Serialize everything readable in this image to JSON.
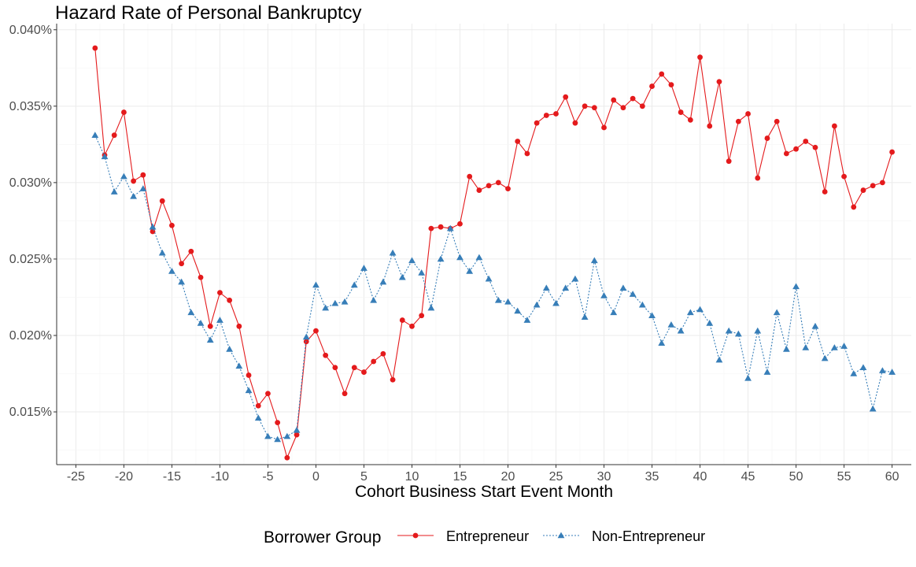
{
  "chart_data": {
    "type": "line",
    "title": "Hazard Rate of Personal Bankruptcy",
    "xlabel": "Cohort Business Start Event Month",
    "ylabel": "",
    "xlim": [
      -27,
      62
    ],
    "ylim": [
      0.01155,
      0.0404
    ],
    "x_ticks": [
      -25,
      -20,
      -15,
      -10,
      -5,
      0,
      5,
      10,
      15,
      20,
      25,
      30,
      35,
      40,
      45,
      50,
      55,
      60
    ],
    "x_tick_labels": [
      "-25",
      "-20",
      "-15",
      "-10",
      "-5",
      "0",
      "5",
      "10",
      "15",
      "20",
      "25",
      "30",
      "35",
      "40",
      "45",
      "50",
      "55",
      "60"
    ],
    "y_ticks": [
      0.015,
      0.02,
      0.025,
      0.03,
      0.035,
      0.04
    ],
    "y_tick_labels": [
      "0.015%",
      "0.020%",
      "0.025%",
      "0.030%",
      "0.035%",
      "0.040%"
    ],
    "grid": true,
    "legend": {
      "title": "Borrower Group",
      "placement": "bottom"
    },
    "series": [
      {
        "name": "Entrepreneur",
        "color": "#e41a1c",
        "line_style": "solid",
        "marker": "circle",
        "x": [
          -23,
          -22,
          -21,
          -20,
          -19,
          -18,
          -17,
          -16,
          -15,
          -14,
          -13,
          -12,
          -11,
          -10,
          -9,
          -8,
          -7,
          -6,
          -5,
          -4,
          -3,
          -2,
          -1,
          0,
          1,
          2,
          3,
          4,
          5,
          6,
          7,
          8,
          9,
          10,
          11,
          12,
          13,
          14,
          15,
          16,
          17,
          18,
          19,
          20,
          21,
          22,
          23,
          24,
          25,
          26,
          27,
          28,
          29,
          30,
          31,
          32,
          33,
          34,
          35,
          36,
          37,
          38,
          39,
          40,
          41,
          42,
          43,
          44,
          45,
          46,
          47,
          48,
          49,
          50,
          51,
          52,
          53,
          54,
          55,
          56,
          57,
          58,
          59,
          60
        ],
        "values": [
          0.0388,
          0.0318,
          0.0331,
          0.0346,
          0.0301,
          0.0305,
          0.0268,
          0.0288,
          0.0272,
          0.0247,
          0.0255,
          0.0238,
          0.0206,
          0.0228,
          0.0223,
          0.0206,
          0.0174,
          0.0154,
          0.0162,
          0.0143,
          0.012,
          0.0135,
          0.0196,
          0.0203,
          0.0187,
          0.0179,
          0.0162,
          0.0179,
          0.0176,
          0.0183,
          0.0188,
          0.0171,
          0.021,
          0.0206,
          0.0213,
          0.027,
          0.0271,
          0.027,
          0.0273,
          0.0304,
          0.0295,
          0.0298,
          0.03,
          0.0296,
          0.0327,
          0.0319,
          0.0339,
          0.0344,
          0.0345,
          0.0356,
          0.0339,
          0.035,
          0.0349,
          0.0336,
          0.0354,
          0.0349,
          0.0355,
          0.035,
          0.0363,
          0.0371,
          0.0364,
          0.0346,
          0.0341,
          0.0382,
          0.0337,
          0.0366,
          0.0314,
          0.034,
          0.0345,
          0.0303,
          0.0329,
          0.034,
          0.0319,
          0.0322,
          0.0327,
          0.0323,
          0.0294,
          0.0337,
          0.0304,
          0.0284,
          0.0295,
          0.0298,
          0.03,
          0.032
        ]
      },
      {
        "name": "Non-Entrepreneur",
        "color": "#377eb8",
        "line_style": "dotted",
        "marker": "triangle",
        "x": [
          -23,
          -22,
          -21,
          -20,
          -19,
          -18,
          -17,
          -16,
          -15,
          -14,
          -13,
          -12,
          -11,
          -10,
          -9,
          -8,
          -7,
          -6,
          -5,
          -4,
          -3,
          -2,
          -1,
          0,
          1,
          2,
          3,
          4,
          5,
          6,
          7,
          8,
          9,
          10,
          11,
          12,
          13,
          14,
          15,
          16,
          17,
          18,
          19,
          20,
          21,
          22,
          23,
          24,
          25,
          26,
          27,
          28,
          29,
          30,
          31,
          32,
          33,
          34,
          35,
          36,
          37,
          38,
          39,
          40,
          41,
          42,
          43,
          44,
          45,
          46,
          47,
          48,
          49,
          50,
          51,
          52,
          53,
          54,
          55,
          56,
          57,
          58,
          59,
          60
        ],
        "values": [
          0.0331,
          0.0317,
          0.0294,
          0.0304,
          0.0291,
          0.0296,
          0.0271,
          0.0254,
          0.0242,
          0.0235,
          0.0215,
          0.0208,
          0.0197,
          0.021,
          0.0191,
          0.018,
          0.0164,
          0.0146,
          0.0134,
          0.0132,
          0.0134,
          0.0138,
          0.0199,
          0.0233,
          0.0218,
          0.0221,
          0.0222,
          0.0233,
          0.0244,
          0.0223,
          0.0235,
          0.0254,
          0.0238,
          0.0249,
          0.0241,
          0.0218,
          0.025,
          0.027,
          0.0251,
          0.0242,
          0.0251,
          0.0237,
          0.0223,
          0.0222,
          0.0216,
          0.021,
          0.022,
          0.0231,
          0.0221,
          0.0231,
          0.0237,
          0.0212,
          0.0249,
          0.0226,
          0.0215,
          0.0231,
          0.0227,
          0.022,
          0.0213,
          0.0195,
          0.0207,
          0.0203,
          0.0215,
          0.0217,
          0.0208,
          0.0184,
          0.0203,
          0.0201,
          0.0172,
          0.0203,
          0.0176,
          0.0215,
          0.0191,
          0.0232,
          0.0192,
          0.0206,
          0.0185,
          0.0192,
          0.0193,
          0.0175,
          0.0179,
          0.0152,
          0.0177,
          0.0176
        ]
      }
    ]
  }
}
